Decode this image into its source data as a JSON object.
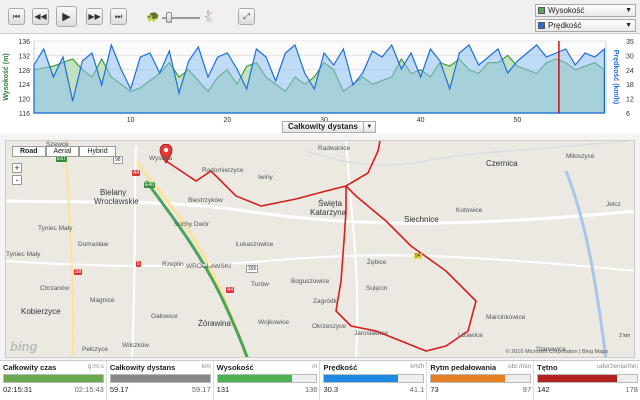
{
  "toolbar": {
    "buttons": [
      "skip-back",
      "step-back",
      "play",
      "step-forward",
      "skip-forward",
      "fullscreen"
    ],
    "selectors": [
      {
        "label": "Wysokość",
        "color": "#4caf50"
      },
      {
        "label": "Prędkość",
        "color": "#1e6fd9"
      }
    ]
  },
  "chart": {
    "left_axis_label": "Wysokość (m)",
    "right_axis_label": "Prędkość (km/h)",
    "left_ticks": [
      "136",
      "132",
      "128",
      "124",
      "120",
      "116"
    ],
    "right_ticks": [
      "35",
      "30",
      "24",
      "18",
      "12",
      "6"
    ],
    "x_ticks": [
      "10",
      "20",
      "30",
      "40",
      "50"
    ],
    "x_selector_label": "Całkowity dystans",
    "cursor_km": 54.3
  },
  "chart_data": [
    {
      "type": "area",
      "xlabel": "Całkowity dystans",
      "ylabel": "Wysokość (m)",
      "ylim": [
        116,
        136
      ],
      "xlim": [
        0,
        59.17
      ],
      "series": [
        {
          "name": "Wysokość",
          "color": "#4caf50",
          "x": [
            0,
            2,
            4,
            5,
            6,
            7,
            8,
            9,
            10,
            11,
            12,
            13,
            14,
            15,
            16,
            17,
            18,
            19,
            20,
            21,
            22,
            23,
            24,
            25,
            26,
            27,
            28,
            29,
            30,
            31,
            32,
            33,
            34,
            35,
            36,
            37,
            38,
            39,
            40,
            41,
            42,
            43,
            44,
            45,
            46,
            47,
            48,
            49,
            50,
            51,
            52,
            53,
            54,
            55,
            56,
            57,
            58,
            59
          ],
          "values": [
            128,
            129,
            131,
            128,
            126,
            131,
            126,
            124,
            122,
            123,
            125,
            127,
            130,
            126,
            128,
            125,
            122,
            126,
            128,
            124,
            129,
            130,
            126,
            124,
            122,
            126,
            124,
            126,
            130,
            128,
            122,
            124,
            126,
            124,
            125,
            126,
            131,
            127,
            128,
            126,
            130,
            129,
            131,
            128,
            127,
            130,
            130,
            132,
            129,
            128,
            127,
            130,
            131,
            130,
            128,
            129,
            130,
            128
          ]
        }
      ]
    },
    {
      "type": "line",
      "xlabel": "Całkowity dystans",
      "ylabel": "Prędkość (km/h)",
      "ylim": [
        0,
        36
      ],
      "xlim": [
        0,
        59.17
      ],
      "series": [
        {
          "name": "Prędkość",
          "color": "#1e6fd9",
          "x": [
            0,
            1,
            2,
            3,
            4,
            5,
            6,
            7,
            8,
            9,
            10,
            11,
            12,
            13,
            14,
            15,
            16,
            17,
            18,
            19,
            20,
            21,
            22,
            23,
            24,
            25,
            26,
            27,
            28,
            29,
            30,
            31,
            32,
            33,
            34,
            35,
            36,
            37,
            38,
            39,
            40,
            41,
            42,
            43,
            44,
            45,
            46,
            47,
            48,
            49,
            50,
            51,
            52,
            53,
            54,
            55,
            56,
            57,
            58,
            59
          ],
          "values": [
            24,
            32,
            18,
            28,
            6,
            26,
            30,
            14,
            34,
            22,
            12,
            28,
            30,
            20,
            31,
            10,
            26,
            33,
            18,
            28,
            30,
            22,
            12,
            32,
            28,
            16,
            30,
            34,
            20,
            12,
            30,
            24,
            32,
            14,
            20,
            31,
            28,
            34,
            22,
            30,
            18,
            32,
            26,
            12,
            30,
            34,
            24,
            28,
            32,
            20,
            26,
            30,
            34,
            28,
            30,
            32,
            24,
            30,
            28,
            32
          ]
        }
      ]
    }
  ],
  "map": {
    "type_buttons": [
      "Road",
      "Aerial",
      "Hybrid"
    ],
    "active_type": "Road",
    "zoom_in": "+",
    "zoom_out": "-",
    "places": [
      {
        "name": "Szewce",
        "cls": ""
      },
      {
        "name": "Radwanice",
        "cls": ""
      },
      {
        "name": "Bielany",
        "cls": "big"
      },
      {
        "name": "Wrocławskie",
        "cls": "big"
      },
      {
        "name": "Wysoka",
        "cls": ""
      },
      {
        "name": "Radomierzyce",
        "cls": ""
      },
      {
        "name": "Iwiny",
        "cls": ""
      },
      {
        "name": "Biestrzyków",
        "cls": ""
      },
      {
        "name": "Suchy Dwór",
        "cls": ""
      },
      {
        "name": "Tyniec Mały",
        "cls": ""
      },
      {
        "name": "Domasław",
        "cls": ""
      },
      {
        "name": "Święta",
        "cls": "big"
      },
      {
        "name": "Katarzyna",
        "cls": "big"
      },
      {
        "name": "Siechnice",
        "cls": "big"
      },
      {
        "name": "Czernica",
        "cls": "big"
      },
      {
        "name": "Kotowice",
        "cls": ""
      },
      {
        "name": "Miłoszyce",
        "cls": ""
      },
      {
        "name": "Rzeplin",
        "cls": ""
      },
      {
        "name": "WROCŁAWSKI",
        "cls": ""
      },
      {
        "name": "Łukaszowice",
        "cls": ""
      },
      {
        "name": "Boguszowice",
        "cls": ""
      },
      {
        "name": "Żębice",
        "cls": ""
      },
      {
        "name": "Sulęcin",
        "cls": ""
      },
      {
        "name": "Turów",
        "cls": ""
      },
      {
        "name": "Zagródki",
        "cls": ""
      },
      {
        "name": "Okrzeszyce",
        "cls": ""
      },
      {
        "name": "Jarosławice",
        "cls": ""
      },
      {
        "name": "Chrzanów",
        "cls": ""
      },
      {
        "name": "Magnice",
        "cls": ""
      },
      {
        "name": "Gałowice",
        "cls": ""
      },
      {
        "name": "Żórawina",
        "cls": "big"
      },
      {
        "name": "Wojkowice",
        "cls": ""
      },
      {
        "name": "Kobierzyce",
        "cls": "big"
      },
      {
        "name": "Pełczyce",
        "cls": ""
      },
      {
        "name": "Wilczków",
        "cls": ""
      },
      {
        "name": "Marcinkowice",
        "cls": ""
      },
      {
        "name": "Lizawice",
        "cls": ""
      },
      {
        "name": "Stanowice",
        "cls": ""
      },
      {
        "name": "Tyniec Mały",
        "cls": ""
      },
      {
        "name": "Jelcz",
        "cls": ""
      }
    ],
    "road_shields": [
      {
        "text": "E67",
        "cls": "green"
      },
      {
        "text": "98",
        "cls": ""
      },
      {
        "text": "A4",
        "cls": "red"
      },
      {
        "text": "E40",
        "cls": "green"
      },
      {
        "text": "5",
        "cls": "red"
      },
      {
        "text": "S8",
        "cls": "red"
      },
      {
        "text": "A4",
        "cls": "red"
      },
      {
        "text": "94",
        "cls": "yellow"
      },
      {
        "text": "395",
        "cls": ""
      }
    ],
    "logo": "bing",
    "copyright": "© 2010 Microsoft Corporation  |  Bing Maps",
    "scale": "2 km"
  },
  "stats": [
    {
      "name": "Całkowity czas",
      "unit": "g:m:s",
      "value": "02:15:31",
      "max": "02:15:43",
      "color": "#6aa84f",
      "level": 0.998
    },
    {
      "name": "Całkowity dystans",
      "unit": "km",
      "value": "59.17",
      "max": "59.17",
      "color": "#888888",
      "level": 1.0
    },
    {
      "name": "Wysokość",
      "unit": "m",
      "value": "131",
      "max": "136",
      "color": "#4caf50",
      "level": 0.75
    },
    {
      "name": "Prędkość",
      "unit": "km/h",
      "value": "30.3",
      "max": "41.1",
      "color": "#1e88e5",
      "level": 0.74
    },
    {
      "name": "Rytm pedałowania",
      "unit": "obr./min",
      "value": "73",
      "max": "97",
      "color": "#e67e22",
      "level": 0.75
    },
    {
      "name": "Tętno",
      "unit": "uderzenia/min",
      "value": "142",
      "max": "178",
      "color": "#b22222",
      "level": 0.8
    }
  ]
}
